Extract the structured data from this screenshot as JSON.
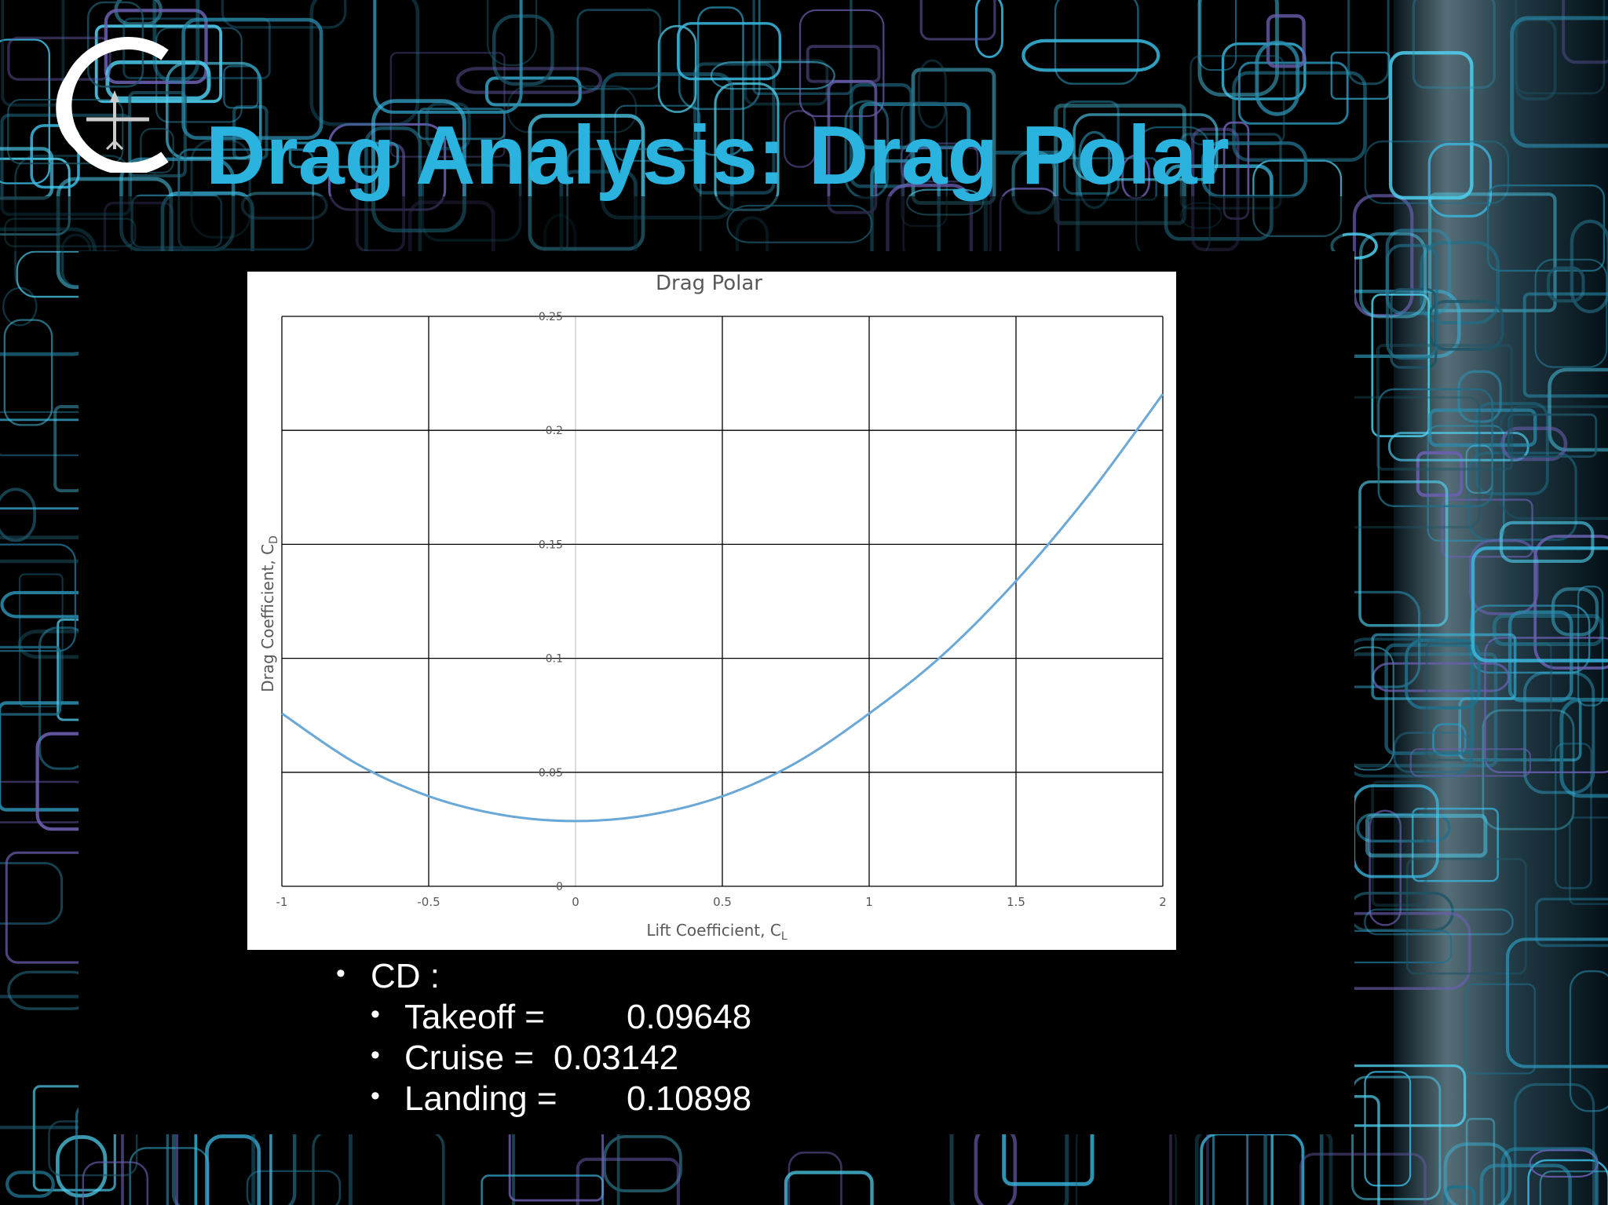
{
  "slide": {
    "title": "Drag Analysis: Drag Polar",
    "logo_icon": "college-c-airplane-logo-icon",
    "accent_color": "#2bb3e0"
  },
  "bullets": {
    "heading": "CD :",
    "items": [
      {
        "label": "Takeoff =",
        "value": "0.09648"
      },
      {
        "label": "Cruise =",
        "value": "0.03142"
      },
      {
        "label": "Landing =",
        "value": "0.10898"
      }
    ]
  },
  "chart_data": {
    "type": "line",
    "title": "Drag Polar",
    "xlabel": "Lift Coefficient, C",
    "xlabel_sub": "L",
    "ylabel": "Drag Coefficient, C",
    "ylabel_sub": "D",
    "xlim": [
      -1,
      2
    ],
    "ylim": [
      0,
      0.25
    ],
    "x_ticks": [
      "-1",
      "-0.5",
      "0",
      "0.5",
      "1",
      "1.5",
      "2"
    ],
    "y_ticks": [
      "0",
      "0.05",
      "0.1",
      "0.15",
      "0.2",
      "0.25"
    ],
    "grid": true,
    "line_color": "#6aa8d8",
    "series": [
      {
        "x": [
          -1,
          -0.75,
          -0.5,
          -0.25,
          0,
          0.25,
          0.5,
          0.75,
          1,
          1.25,
          1.5,
          1.75,
          2
        ],
        "y": [
          0.0758,
          0.0541,
          0.0395,
          0.0313,
          0.0286,
          0.0313,
          0.0395,
          0.0541,
          0.0758,
          0.1014,
          0.1339,
          0.1721,
          0.2159
        ]
      }
    ]
  }
}
